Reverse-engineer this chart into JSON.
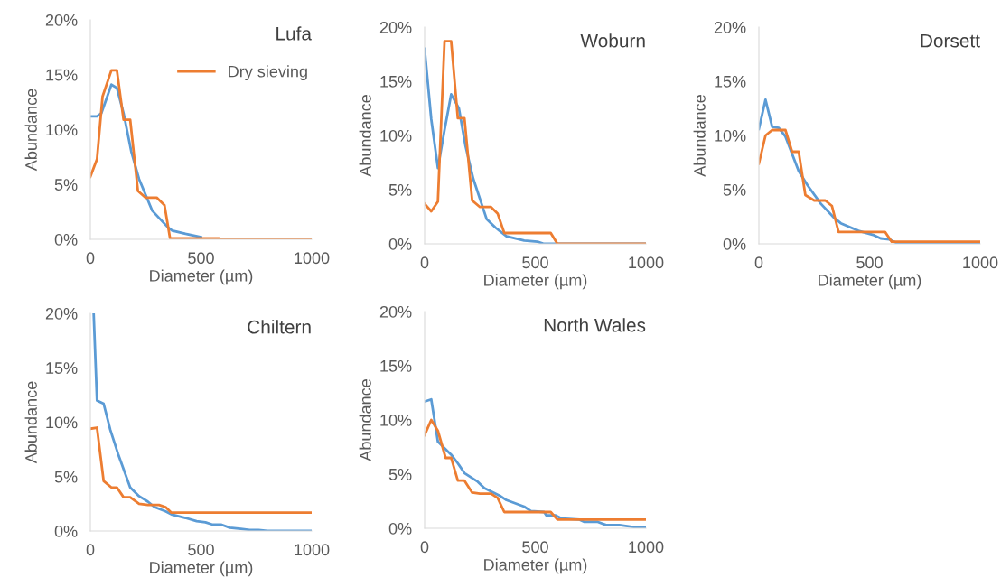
{
  "chart_data": [
    {
      "type": "line",
      "title": "Lufa",
      "xlabel": "Diameter (µm)",
      "ylabel": "Abundance",
      "xlim": [
        0,
        1000
      ],
      "xticks": [
        0,
        500,
        1000
      ],
      "ylim": [
        0,
        20
      ],
      "yticks": [
        {
          "value": 0,
          "label": "0%"
        },
        {
          "value": 5,
          "label": "5%"
        },
        {
          "value": 10,
          "label": "10%"
        },
        {
          "value": 15,
          "label": "15%"
        },
        {
          "value": 20,
          "label": "20%"
        }
      ],
      "legend": "top right",
      "series": [
        {
          "color": "#5b9bd5",
          "x": [
            0,
            30,
            50,
            95,
            120,
            150,
            185,
            220,
            280,
            350,
            370,
            430,
            500
          ],
          "values": [
            11.2,
            11.2,
            11.5,
            14.1,
            13.8,
            11.5,
            8,
            5.5,
            2.6,
            1.1,
            0.8,
            0.5,
            0.2
          ]
        },
        {
          "name": "Dry sieving",
          "color": "#ed7d31",
          "x": [
            0,
            30,
            55,
            95,
            120,
            150,
            180,
            215,
            250,
            300,
            335,
            360,
            580,
            600,
            1000
          ],
          "values": [
            5.7,
            7.3,
            13,
            15.4,
            15.4,
            10.9,
            10.9,
            4.4,
            3.8,
            3.8,
            3.1,
            0.1,
            0.1,
            0,
            0
          ]
        }
      ]
    },
    {
      "type": "line",
      "title": "Woburn",
      "xlabel": "Diameter (µm)",
      "ylabel": "Abundance",
      "xlim": [
        0,
        1000
      ],
      "xticks": [
        0,
        500,
        1000
      ],
      "ylim": [
        0,
        20
      ],
      "yticks": [
        {
          "value": 0,
          "label": "0%"
        },
        {
          "value": 5,
          "label": "5%"
        },
        {
          "value": 10,
          "label": "10%"
        },
        {
          "value": 15,
          "label": "15%"
        },
        {
          "value": 20,
          "label": "20%"
        }
      ],
      "series": [
        {
          "color": "#5b9bd5",
          "x": [
            0,
            30,
            60,
            90,
            120,
            155,
            185,
            220,
            280,
            320,
            370,
            450,
            510,
            540,
            1000
          ],
          "values": [
            18,
            11.5,
            7,
            10.5,
            13.8,
            12.5,
            9,
            6,
            2.3,
            1.5,
            0.7,
            0.3,
            0.2,
            0,
            0
          ]
        },
        {
          "color": "#ed7d31",
          "x": [
            0,
            30,
            60,
            90,
            120,
            150,
            180,
            215,
            250,
            300,
            330,
            360,
            570,
            600,
            1000
          ],
          "values": [
            3.7,
            3,
            3.9,
            18.7,
            18.7,
            11.6,
            11.6,
            4,
            3.4,
            3.4,
            2.8,
            1,
            1,
            0,
            0
          ]
        }
      ]
    },
    {
      "type": "line",
      "title": "Dorsett",
      "xlabel": "Diameter (µm)",
      "ylabel": "Abundance",
      "xlim": [
        0,
        1000
      ],
      "xticks": [
        0,
        500,
        1000
      ],
      "ylim": [
        0,
        20
      ],
      "yticks": [
        {
          "value": 0,
          "label": "0%"
        },
        {
          "value": 5,
          "label": "5%"
        },
        {
          "value": 10,
          "label": "10%"
        },
        {
          "value": 15,
          "label": "15%"
        },
        {
          "value": 20,
          "label": "20%"
        }
      ],
      "series": [
        {
          "color": "#5b9bd5",
          "x": [
            0,
            30,
            60,
            90,
            120,
            180,
            220,
            280,
            340,
            370,
            450,
            520,
            550,
            590,
            620,
            700,
            1000
          ],
          "values": [
            10.6,
            13.3,
            10.8,
            10.7,
            9.9,
            6.7,
            5.4,
            3.7,
            2.4,
            1.9,
            1.2,
            0.8,
            0.5,
            0.4,
            0.1,
            0,
            0
          ]
        },
        {
          "color": "#ed7d31",
          "x": [
            0,
            30,
            60,
            120,
            150,
            180,
            210,
            250,
            300,
            330,
            360,
            570,
            600,
            1000
          ],
          "values": [
            7.4,
            10,
            10.5,
            10.5,
            8.5,
            8.5,
            4.5,
            4,
            4,
            3.5,
            1.1,
            1.1,
            0.2,
            0.2
          ]
        }
      ]
    },
    {
      "type": "line",
      "title": "Chiltern",
      "xlabel": "Diameter (µm)",
      "ylabel": "Abundance",
      "xlim": [
        0,
        1000
      ],
      "xticks": [
        0,
        500,
        1000
      ],
      "ylim": [
        0,
        20
      ],
      "yticks": [
        {
          "value": 0,
          "label": "0%"
        },
        {
          "value": 5,
          "label": "5%"
        },
        {
          "value": 10,
          "label": "10%"
        },
        {
          "value": 15,
          "label": "15%"
        },
        {
          "value": 20,
          "label": "20%"
        }
      ],
      "series": [
        {
          "color": "#5b9bd5",
          "x": [
            15,
            30,
            60,
            90,
            125,
            180,
            220,
            260,
            290,
            340,
            370,
            430,
            480,
            520,
            550,
            590,
            630,
            680,
            720,
            760,
            800,
            1000
          ],
          "values": [
            20,
            12,
            11.7,
            9.3,
            7.1,
            4,
            3.2,
            2.7,
            2.2,
            1.8,
            1.5,
            1.2,
            0.9,
            0.8,
            0.6,
            0.6,
            0.3,
            0.2,
            0.1,
            0.1,
            0,
            0
          ]
        },
        {
          "color": "#ed7d31",
          "x": [
            0,
            30,
            60,
            95,
            120,
            150,
            180,
            220,
            260,
            310,
            340,
            365,
            1000
          ],
          "values": [
            9.4,
            9.5,
            4.6,
            4,
            4,
            3.1,
            3.1,
            2.5,
            2.4,
            2.4,
            2.2,
            1.7,
            1.7
          ]
        }
      ]
    },
    {
      "type": "line",
      "title": "North Wales",
      "xlabel": "Diameter (µm)",
      "ylabel": "Abundance",
      "xlim": [
        0,
        1000
      ],
      "xticks": [
        0,
        500,
        1000
      ],
      "ylim": [
        0,
        20
      ],
      "yticks": [
        {
          "value": 0,
          "label": "0%"
        },
        {
          "value": 5,
          "label": "5%"
        },
        {
          "value": 10,
          "label": "10%"
        },
        {
          "value": 15,
          "label": "15%"
        },
        {
          "value": 20,
          "label": "20%"
        }
      ],
      "series": [
        {
          "color": "#5b9bd5",
          "x": [
            0,
            30,
            60,
            120,
            150,
            180,
            240,
            270,
            340,
            370,
            450,
            480,
            540,
            550,
            590,
            620,
            700,
            720,
            780,
            820,
            880,
            950,
            1000
          ],
          "values": [
            11.7,
            11.9,
            8,
            6.8,
            6,
            5.1,
            4.3,
            3.7,
            3,
            2.6,
            2,
            1.6,
            1.5,
            1.2,
            1.2,
            0.9,
            0.8,
            0.6,
            0.6,
            0.3,
            0.3,
            0.1,
            0.1
          ]
        },
        {
          "color": "#ed7d31",
          "x": [
            0,
            30,
            60,
            95,
            120,
            150,
            180,
            215,
            250,
            300,
            330,
            360,
            570,
            600,
            1000
          ],
          "values": [
            8.6,
            10,
            9,
            6.5,
            6.5,
            4.4,
            4.4,
            3.3,
            3.2,
            3.2,
            2.8,
            1.5,
            1.5,
            0.8,
            0.8
          ]
        }
      ]
    }
  ]
}
